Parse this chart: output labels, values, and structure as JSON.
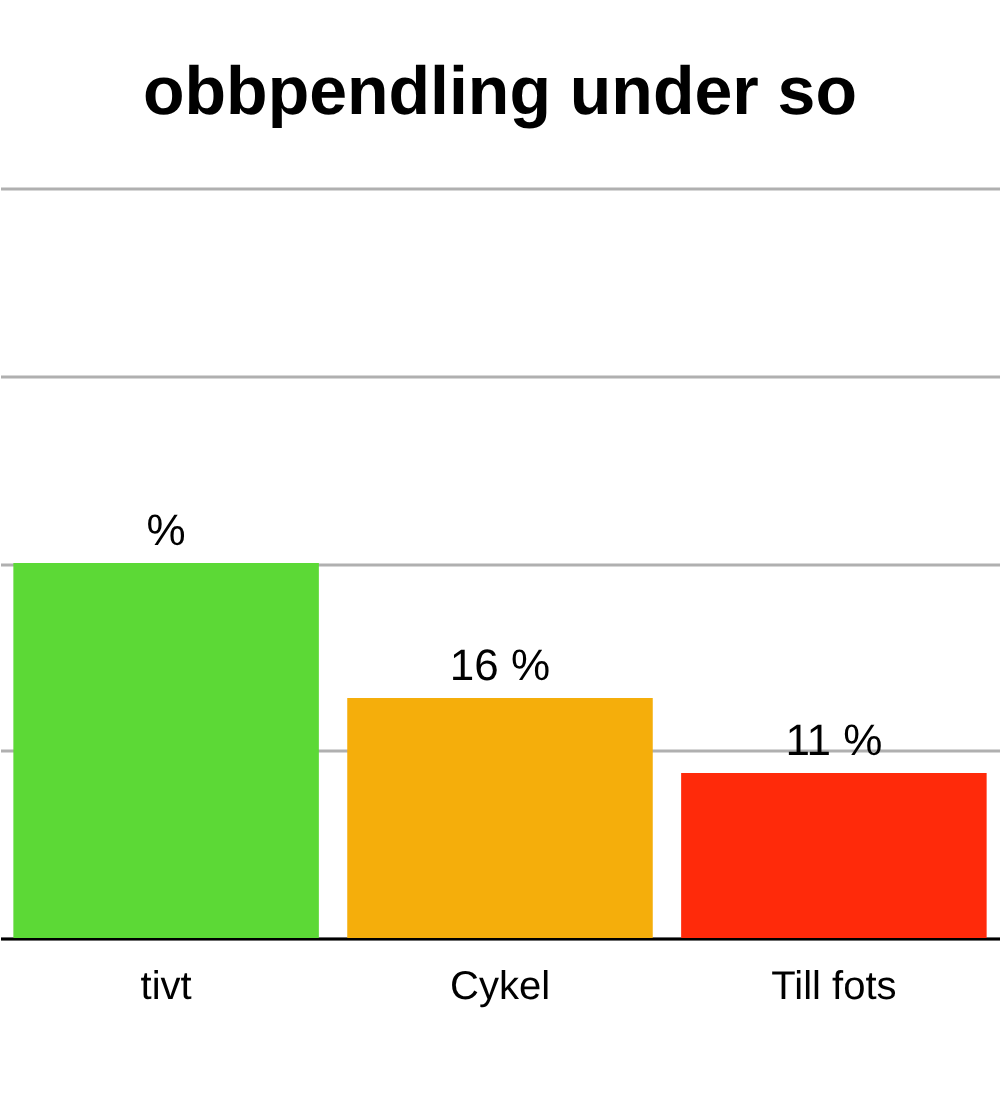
{
  "chart_data": {
    "type": "bar",
    "title": "obbpendling under so",
    "categories": [
      "tivt",
      "Cykel",
      "Till fots"
    ],
    "values": [
      25,
      16,
      11
    ],
    "colors": [
      "#5cd936",
      "#f5ae0b",
      "#ff2a0a"
    ],
    "value_labels": [
      "%",
      "16 %",
      "11 %"
    ],
    "ylim": [
      0,
      50
    ],
    "yticks": [
      0,
      {
        "value": 12.5,
        "label": null
      },
      25,
      {
        "value": 37.5,
        "label": null
      },
      50
    ],
    "grid": "y",
    "tick_labels": "x"
  }
}
